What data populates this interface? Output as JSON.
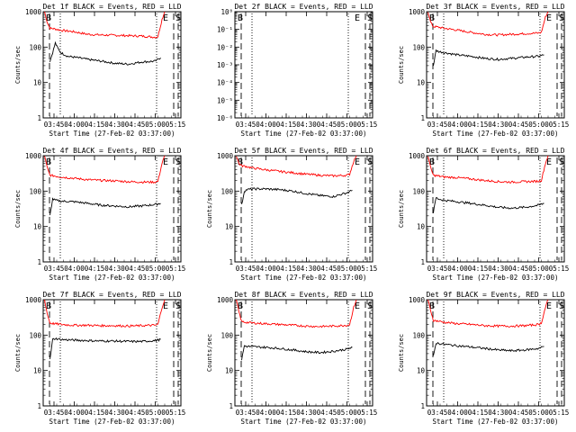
{
  "chart_data": [
    {
      "type": "line",
      "title": "Det 1f BLACK = Events, RED = LLD",
      "xlabel": "Start Time (27-Feb-02 03:37:00)",
      "ylabel": "Counts/sec",
      "y_scale": "log",
      "ylim": [
        1,
        1000
      ],
      "x_ticks": [
        "03:45",
        "04:00",
        "04:15",
        "04:30",
        "04:45",
        "05:00",
        "05:15"
      ],
      "y_ticks": [
        "1",
        "10",
        "100",
        "1000"
      ],
      "markers": [
        "B",
        "E",
        "S"
      ],
      "series": [
        {
          "color": "#ff0000",
          "x": [
            "03:38",
            "03:40",
            "03:42",
            "03:45",
            "03:50",
            "04:00",
            "04:10",
            "04:20",
            "04:30",
            "04:40",
            "04:50",
            "05:00",
            "05:02",
            "05:05",
            "05:07"
          ],
          "y": [
            1000,
            500,
            340,
            330,
            300,
            270,
            230,
            220,
            215,
            210,
            205,
            190,
            200,
            600,
            1000
          ]
        },
        {
          "color": "#000000",
          "x": [
            "03:42",
            "03:44",
            "03:46",
            "03:48",
            "03:50",
            "03:55",
            "04:00",
            "04:10",
            "04:20",
            "04:30",
            "04:40",
            "04:50",
            "05:00",
            "05:02",
            "05:04"
          ],
          "y": [
            40,
            70,
            130,
            90,
            70,
            55,
            52,
            45,
            40,
            35,
            33,
            38,
            40,
            45,
            50
          ]
        }
      ]
    },
    {
      "type": "line",
      "title": "Det 2f BLACK = Events, RED = LLD",
      "xlabel": "Start Time (27-Feb-02 03:37:00)",
      "ylabel": "",
      "y_scale": "log",
      "ylim": [
        1e-06,
        1
      ],
      "x_ticks": [
        "03:45",
        "04:00",
        "04:15",
        "04:30",
        "04:45",
        "05:00",
        "05:15"
      ],
      "y_ticks": [
        "10⁻⁶",
        "10⁻⁵",
        "10⁻⁴",
        "10⁻³",
        "10⁻²",
        "10⁻¹",
        "10⁰"
      ],
      "markers": [
        "B",
        "E",
        "S"
      ],
      "series": []
    },
    {
      "type": "line",
      "title": "Det 3f BLACK = Events, RED = LLD",
      "xlabel": "Start Time (27-Feb-02 03:37:00)",
      "ylabel": "Counts/sec",
      "y_scale": "log",
      "ylim": [
        1,
        1000
      ],
      "x_ticks": [
        "03:45",
        "04:00",
        "04:15",
        "04:30",
        "04:45",
        "05:00",
        "05:15"
      ],
      "y_ticks": [
        "1",
        "10",
        "100",
        "1000"
      ],
      "markers": [
        "B",
        "E",
        "S"
      ],
      "series": [
        {
          "color": "#ff0000",
          "x": [
            "03:38",
            "03:40",
            "03:42",
            "03:45",
            "03:50",
            "04:00",
            "04:10",
            "04:20",
            "04:30",
            "04:40",
            "04:50",
            "05:00",
            "05:02",
            "05:05",
            "05:07"
          ],
          "y": [
            1000,
            500,
            380,
            370,
            340,
            300,
            260,
            230,
            220,
            230,
            240,
            250,
            260,
            700,
            1000
          ]
        },
        {
          "color": "#000000",
          "x": [
            "03:42",
            "03:44",
            "03:46",
            "03:50",
            "04:00",
            "04:10",
            "04:20",
            "04:30",
            "04:40",
            "04:50",
            "05:00",
            "05:04"
          ],
          "y": [
            30,
            80,
            75,
            70,
            60,
            55,
            48,
            45,
            48,
            52,
            55,
            60
          ]
        }
      ]
    },
    {
      "type": "line",
      "title": "Det 4f BLACK = Events, RED = LLD",
      "xlabel": "Start Time (27-Feb-02 03:37:00)",
      "ylabel": "Counts/sec",
      "y_scale": "log",
      "ylim": [
        1,
        1000
      ],
      "x_ticks": [
        "03:45",
        "04:00",
        "04:15",
        "04:30",
        "04:45",
        "05:00",
        "05:15"
      ],
      "y_ticks": [
        "1",
        "10",
        "100",
        "1000"
      ],
      "markers": [
        "B",
        "E",
        "S"
      ],
      "series": [
        {
          "color": "#ff0000",
          "x": [
            "03:38",
            "03:40",
            "03:42",
            "03:45",
            "03:50",
            "04:00",
            "04:10",
            "04:20",
            "04:30",
            "04:40",
            "04:50",
            "05:00",
            "05:02",
            "05:05",
            "05:07"
          ],
          "y": [
            1000,
            450,
            280,
            270,
            250,
            230,
            210,
            200,
            195,
            185,
            180,
            180,
            190,
            600,
            1000
          ]
        },
        {
          "color": "#000000",
          "x": [
            "03:42",
            "03:44",
            "03:46",
            "03:50",
            "04:00",
            "04:10",
            "04:20",
            "04:30",
            "04:40",
            "04:50",
            "05:00",
            "05:04"
          ],
          "y": [
            20,
            60,
            55,
            52,
            50,
            45,
            40,
            38,
            36,
            38,
            42,
            45
          ]
        }
      ]
    },
    {
      "type": "line",
      "title": "Det 5f BLACK = Events, RED = LLD",
      "xlabel": "Start Time (27-Feb-02 03:37:00)",
      "ylabel": "Counts/sec",
      "y_scale": "log",
      "ylim": [
        1,
        1000
      ],
      "x_ticks": [
        "03:45",
        "04:00",
        "04:15",
        "04:30",
        "04:45",
        "05:00",
        "05:15"
      ],
      "y_ticks": [
        "1",
        "10",
        "100",
        "1000"
      ],
      "markers": [
        "B",
        "E",
        "S"
      ],
      "series": [
        {
          "color": "#ff0000",
          "x": [
            "03:38",
            "03:40",
            "03:42",
            "03:45",
            "03:50",
            "04:00",
            "04:10",
            "04:20",
            "04:30",
            "04:40",
            "04:50",
            "05:00",
            "05:02",
            "05:05",
            "05:07"
          ],
          "y": [
            1000,
            600,
            520,
            500,
            450,
            400,
            360,
            330,
            300,
            280,
            270,
            280,
            300,
            700,
            1000
          ]
        },
        {
          "color": "#000000",
          "x": [
            "03:42",
            "03:44",
            "03:46",
            "03:50",
            "04:00",
            "04:10",
            "04:20",
            "04:30",
            "04:40",
            "04:50",
            "05:00",
            "05:04"
          ],
          "y": [
            40,
            100,
            110,
            115,
            115,
            110,
            100,
            85,
            75,
            70,
            90,
            105
          ]
        }
      ]
    },
    {
      "type": "line",
      "title": "Det 6f BLACK = Events, RED = LLD",
      "xlabel": "Start Time (27-Feb-02 03:37:00)",
      "ylabel": "Counts/sec",
      "y_scale": "log",
      "ylim": [
        1,
        1000
      ],
      "x_ticks": [
        "03:45",
        "04:00",
        "04:15",
        "04:30",
        "04:45",
        "05:00",
        "05:15"
      ],
      "y_ticks": [
        "1",
        "10",
        "100",
        "1000"
      ],
      "markers": [
        "B",
        "E",
        "S"
      ],
      "series": [
        {
          "color": "#ff0000",
          "x": [
            "03:38",
            "03:40",
            "03:42",
            "03:45",
            "03:50",
            "04:00",
            "04:10",
            "04:20",
            "04:30",
            "04:40",
            "04:50",
            "05:00",
            "05:02",
            "05:05",
            "05:07"
          ],
          "y": [
            1000,
            450,
            280,
            270,
            250,
            240,
            220,
            200,
            185,
            180,
            185,
            190,
            200,
            600,
            1000
          ]
        },
        {
          "color": "#000000",
          "x": [
            "03:42",
            "03:44",
            "03:46",
            "03:50",
            "04:00",
            "04:10",
            "04:20",
            "04:30",
            "04:40",
            "04:50",
            "05:00",
            "05:04"
          ],
          "y": [
            25,
            65,
            60,
            55,
            50,
            45,
            40,
            35,
            33,
            35,
            40,
            45
          ]
        }
      ]
    },
    {
      "type": "line",
      "title": "Det 7f BLACK = Events, RED = LLD",
      "xlabel": "Start Time (27-Feb-02 03:37:00)",
      "ylabel": "Counts/sec",
      "y_scale": "log",
      "ylim": [
        1,
        1000
      ],
      "x_ticks": [
        "03:45",
        "04:00",
        "04:15",
        "04:30",
        "04:45",
        "05:00",
        "05:15"
      ],
      "y_ticks": [
        "1",
        "10",
        "100",
        "1000"
      ],
      "markers": [
        "B",
        "E",
        "S"
      ],
      "series": [
        {
          "color": "#ff0000",
          "x": [
            "03:38",
            "03:40",
            "03:42",
            "03:45",
            "03:50",
            "04:00",
            "04:10",
            "04:20",
            "04:30",
            "04:40",
            "04:50",
            "05:00",
            "05:02",
            "05:05",
            "05:07"
          ],
          "y": [
            1000,
            400,
            220,
            210,
            200,
            190,
            190,
            185,
            185,
            180,
            185,
            190,
            200,
            600,
            1000
          ]
        },
        {
          "color": "#000000",
          "x": [
            "03:42",
            "03:44",
            "03:46",
            "03:50",
            "04:00",
            "04:10",
            "04:20",
            "04:30",
            "04:40",
            "04:50",
            "05:00",
            "05:04"
          ],
          "y": [
            20,
            75,
            80,
            75,
            72,
            70,
            68,
            68,
            66,
            66,
            70,
            75
          ]
        }
      ]
    },
    {
      "type": "line",
      "title": "Det 8f BLACK = Events, RED = LLD",
      "xlabel": "Start Time (27-Feb-02 03:37:00)",
      "ylabel": "Counts/sec",
      "y_scale": "log",
      "ylim": [
        1,
        1000
      ],
      "x_ticks": [
        "03:45",
        "04:00",
        "04:15",
        "04:30",
        "04:45",
        "05:00",
        "05:15"
      ],
      "y_ticks": [
        "1",
        "10",
        "100",
        "1000"
      ],
      "markers": [
        "B",
        "E",
        "S"
      ],
      "series": [
        {
          "color": "#ff0000",
          "x": [
            "03:38",
            "03:40",
            "03:42",
            "03:45",
            "03:50",
            "04:00",
            "04:10",
            "04:20",
            "04:30",
            "04:40",
            "04:50",
            "05:00",
            "05:02",
            "05:05",
            "05:07"
          ],
          "y": [
            1000,
            450,
            240,
            230,
            220,
            210,
            200,
            190,
            180,
            175,
            180,
            190,
            200,
            600,
            1000
          ]
        },
        {
          "color": "#000000",
          "x": [
            "03:42",
            "03:44",
            "03:46",
            "03:50",
            "04:00",
            "04:10",
            "04:20",
            "04:30",
            "04:40",
            "04:50",
            "05:00",
            "05:04"
          ],
          "y": [
            20,
            50,
            48,
            47,
            45,
            42,
            38,
            34,
            32,
            35,
            40,
            45
          ]
        }
      ]
    },
    {
      "type": "line",
      "title": "Det 9f BLACK = Events, RED = LLD",
      "xlabel": "Start Time (27-Feb-02 03:37:00)",
      "ylabel": "Counts/sec",
      "y_scale": "log",
      "ylim": [
        1,
        1000
      ],
      "x_ticks": [
        "03:45",
        "04:00",
        "04:15",
        "04:30",
        "04:45",
        "05:00",
        "05:15"
      ],
      "y_ticks": [
        "1",
        "10",
        "100",
        "1000"
      ],
      "markers": [
        "B",
        "E",
        "S"
      ],
      "series": [
        {
          "color": "#ff0000",
          "x": [
            "03:38",
            "03:40",
            "03:42",
            "03:45",
            "03:50",
            "04:00",
            "04:10",
            "04:20",
            "04:30",
            "04:40",
            "04:50",
            "05:00",
            "05:02",
            "05:05",
            "05:07"
          ],
          "y": [
            1000,
            500,
            260,
            250,
            230,
            210,
            200,
            185,
            180,
            180,
            185,
            200,
            220,
            600,
            1000
          ]
        },
        {
          "color": "#000000",
          "x": [
            "03:42",
            "03:44",
            "03:46",
            "03:50",
            "04:00",
            "04:10",
            "04:20",
            "04:30",
            "04:40",
            "04:50",
            "05:00",
            "05:04"
          ],
          "y": [
            25,
            60,
            58,
            55,
            50,
            46,
            42,
            38,
            36,
            38,
            42,
            48
          ]
        }
      ]
    }
  ]
}
